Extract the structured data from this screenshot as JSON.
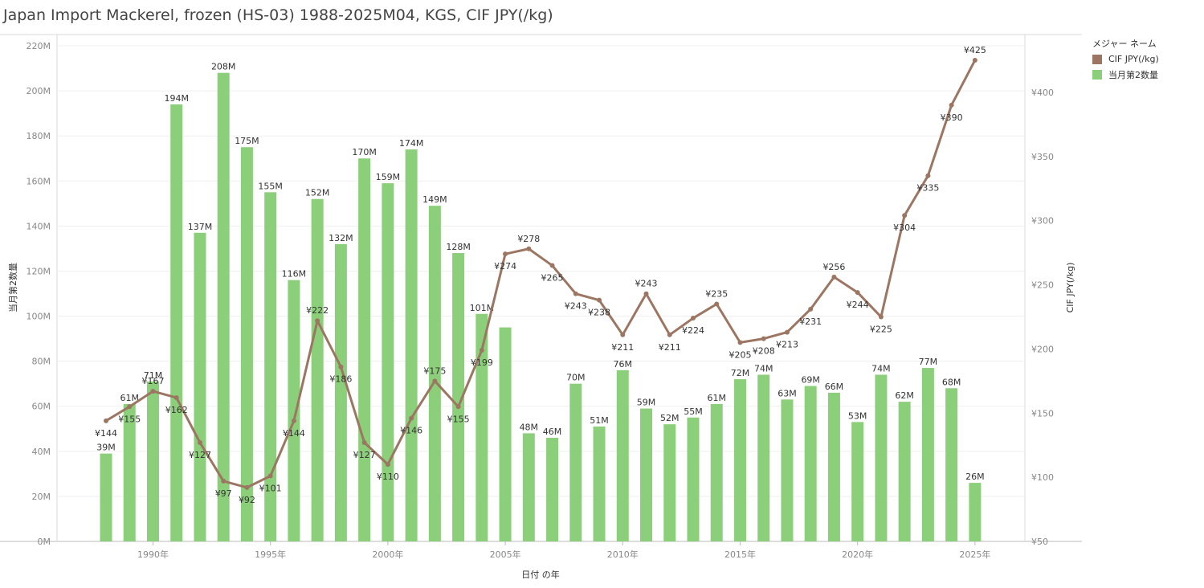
{
  "title": "Japan Import Mackerel, frozen (HS-03) 1988-2025M04, KGS, CIF JPY(/kg)",
  "legend": {
    "title": "メジャー ネーム",
    "items": [
      {
        "label": "CIF JPY(/kg)",
        "color": "#9c7662"
      },
      {
        "label": "当月第2数量",
        "color": "#8ccf7a"
      }
    ]
  },
  "chart_data": {
    "type": "bar+line",
    "title": "Japan Import Mackerel, frozen (HS-03) 1988-2025M04, KGS, CIF JPY(/kg)",
    "xlabel": "日付 の年",
    "ylabel_left": "当月第2数量",
    "ylabel_right": "CIF JPY(/kg)",
    "x_tick_labels": [
      "1990年",
      "1995年",
      "2000年",
      "2005年",
      "2010年",
      "2015年",
      "2020年",
      "2025年"
    ],
    "x_tick_years": [
      1990,
      1995,
      2000,
      2005,
      2010,
      2015,
      2020,
      2025
    ],
    "y_left_ticks": [
      "0M",
      "20M",
      "40M",
      "60M",
      "80M",
      "100M",
      "120M",
      "140M",
      "160M",
      "180M",
      "200M",
      "220M"
    ],
    "y_left_range": [
      0,
      225
    ],
    "y_right_ticks": [
      "¥50",
      "¥100",
      "¥150",
      "¥200",
      "¥250",
      "¥300",
      "¥350",
      "¥400"
    ],
    "y_right_range": [
      50,
      445
    ],
    "grid": true,
    "legend_position": "top-right",
    "years": [
      1988,
      1989,
      1990,
      1991,
      1992,
      1993,
      1994,
      1995,
      1996,
      1997,
      1998,
      1999,
      2000,
      2001,
      2002,
      2003,
      2004,
      2005,
      2006,
      2007,
      2008,
      2009,
      2010,
      2011,
      2012,
      2013,
      2014,
      2015,
      2016,
      2017,
      2018,
      2019,
      2020,
      2021,
      2022,
      2023,
      2024,
      2025
    ],
    "series": [
      {
        "name": "当月第2数量",
        "type": "bar",
        "color": "#8ccf7a",
        "values": [
          39,
          61,
          71,
          194,
          137,
          208,
          175,
          155,
          116,
          152,
          132,
          170,
          159,
          174,
          149,
          128,
          101,
          95,
          48,
          46,
          70,
          51,
          76,
          59,
          52,
          55,
          61,
          72,
          74,
          63,
          69,
          66,
          53,
          74,
          62,
          77,
          68,
          26
        ],
        "labels": [
          "39M",
          "61M",
          "71M",
          "194M",
          "137M",
          "208M",
          "175M",
          "155M",
          "116M",
          "152M",
          "132M",
          "170M",
          "159M",
          "174M",
          "149M",
          "128M",
          "101M",
          "",
          "48M",
          "46M",
          "70M",
          "51M",
          "76M",
          "59M",
          "52M",
          "55M",
          "61M",
          "72M",
          "74M",
          "63M",
          "69M",
          "66M",
          "53M",
          "74M",
          "62M",
          "77M",
          "68M",
          "26M"
        ]
      },
      {
        "name": "CIF JPY(/kg)",
        "type": "line",
        "color": "#9c7662",
        "values": [
          144,
          155,
          167,
          162,
          127,
          97,
          92,
          101,
          144,
          222,
          186,
          127,
          110,
          146,
          175,
          155,
          199,
          274,
          278,
          265,
          243,
          238,
          211,
          243,
          211,
          224,
          235,
          205,
          208,
          213,
          231,
          256,
          244,
          225,
          304,
          335,
          390,
          425
        ],
        "labels": [
          "¥144",
          "¥155",
          "¥167",
          "¥162",
          "¥127",
          "¥97",
          "¥92",
          "¥101",
          "¥144",
          "¥222",
          "¥186",
          "¥127",
          "¥110",
          "¥146",
          "¥175",
          "¥155",
          "¥199",
          "¥274",
          "¥278",
          "¥265",
          "¥243",
          "¥238",
          "¥211",
          "¥243",
          "¥211",
          "¥224",
          "¥235",
          "¥205",
          "¥208",
          "¥213",
          "¥231",
          "¥256",
          "¥244",
          "¥225",
          "¥304",
          "¥335",
          "¥390",
          "¥425"
        ]
      }
    ]
  }
}
